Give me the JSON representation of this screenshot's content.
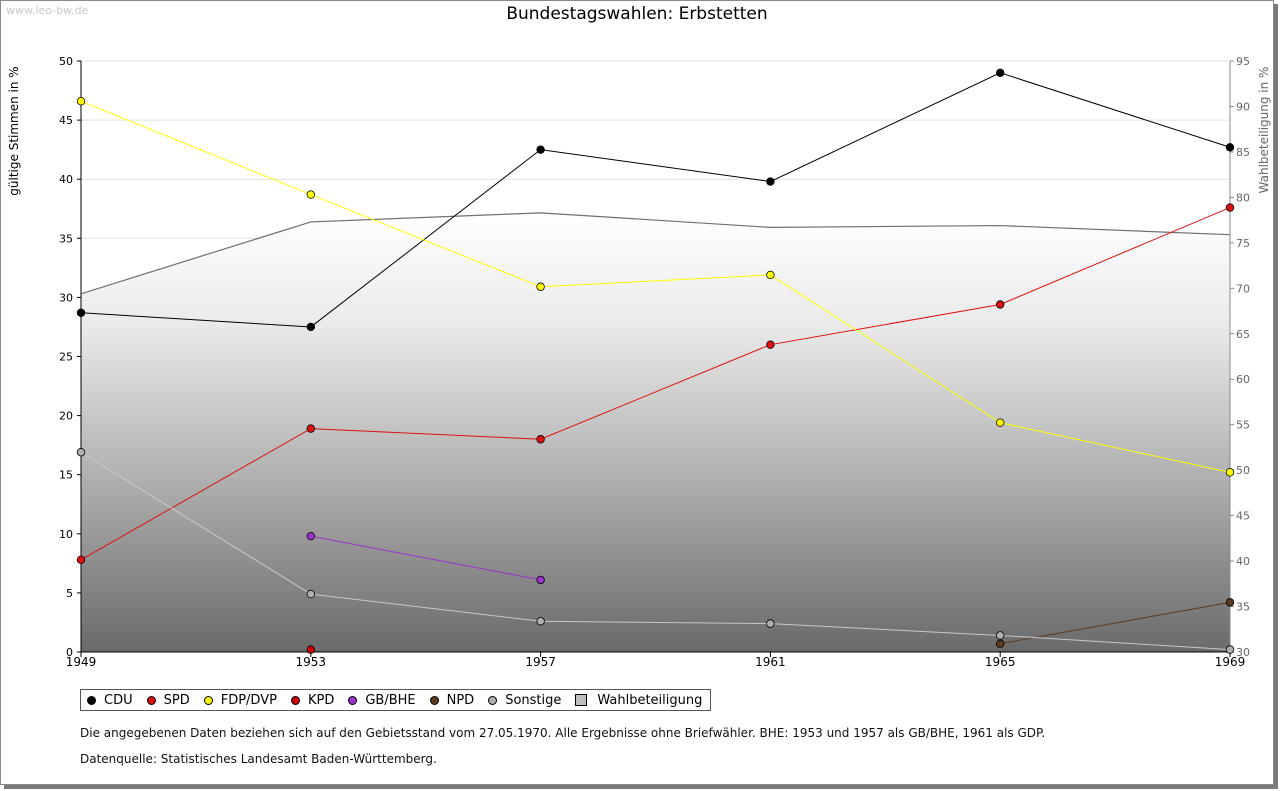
{
  "watermark": "www.leo-bw.de",
  "title": "Bundestagswahlen: Erbstetten",
  "notes": {
    "line1": "Die angegebenen Daten beziehen sich auf den Gebietsstand vom 27.05.1970. Alle Ergebnisse ohne Briefwähler. BHE: 1953 und 1957 als GB/BHE, 1961 als GDP.",
    "line2": "Datenquelle: Statistisches Landesamt Baden-Württemberg."
  },
  "legend": [
    {
      "label": "CDU",
      "color": "#000000"
    },
    {
      "label": "SPD",
      "color": "#dd1111"
    },
    {
      "label": "FDP/DVP",
      "color": "#ffff00"
    },
    {
      "label": "KPD",
      "color": "#cc0000"
    },
    {
      "label": "GB/BHE",
      "color": "#9933cc"
    },
    {
      "label": "NPD",
      "color": "#5a3a22"
    },
    {
      "label": "Sonstige",
      "color": "#b0b0b0"
    },
    {
      "label": "Wahlbeteiligung",
      "color": "#bdbdbd",
      "shape": "square"
    }
  ],
  "chart_data": {
    "type": "line",
    "title": "Bundestagswahlen: Erbstetten",
    "ylabel": "gültige Stimmen in %",
    "y2label": "Wahlbeteiligung in %",
    "x": [
      1949,
      1953,
      1957,
      1961,
      1965,
      1969
    ],
    "xticks": [
      "1949",
      "1953",
      "1957",
      "1961",
      "1965",
      "1969"
    ],
    "ylim": [
      0,
      50
    ],
    "yticks": [
      0,
      5,
      10,
      15,
      20,
      25,
      30,
      35,
      40,
      45,
      50
    ],
    "y2lim": [
      30,
      95
    ],
    "y2ticks": [
      30,
      35,
      40,
      45,
      50,
      55,
      60,
      65,
      70,
      75,
      80,
      85,
      90,
      95
    ],
    "grid": true,
    "legend_position": "bottom",
    "series": [
      {
        "name": "CDU",
        "color": "#000000",
        "marker_color": "#000000",
        "values": [
          28.7,
          27.5,
          42.5,
          39.8,
          49.0,
          42.7
        ]
      },
      {
        "name": "SPD",
        "color": "#dd1111",
        "marker_color": "#dd1111",
        "values": [
          7.8,
          18.9,
          18.0,
          26.0,
          29.4,
          37.6
        ]
      },
      {
        "name": "FDP/DVP",
        "color": "#ffff00",
        "marker_color": "#ffff00",
        "values": [
          46.6,
          38.7,
          30.9,
          31.9,
          19.4,
          15.2
        ]
      },
      {
        "name": "KPD",
        "color": "#cc0000",
        "marker_color": "#cc0000",
        "values": [
          null,
          0.2,
          null,
          null,
          null,
          null
        ]
      },
      {
        "name": "GB/BHE",
        "color": "#9933cc",
        "marker_color": "#9933cc",
        "values": [
          null,
          9.8,
          6.1,
          null,
          null,
          null
        ]
      },
      {
        "name": "NPD",
        "color": "#5a3a22",
        "marker_color": "#5a3a22",
        "values": [
          null,
          null,
          null,
          null,
          0.7,
          4.2
        ]
      },
      {
        "name": "Sonstige",
        "color": "#c8c8c8",
        "marker_color": "#b0b0b0",
        "values": [
          16.9,
          4.9,
          2.6,
          2.4,
          1.4,
          0.2
        ]
      }
    ],
    "turnout": {
      "name": "Wahlbeteiligung",
      "axis": "right",
      "type": "area",
      "values": [
        69.4,
        77.3,
        78.3,
        76.7,
        76.9,
        75.9
      ]
    }
  }
}
